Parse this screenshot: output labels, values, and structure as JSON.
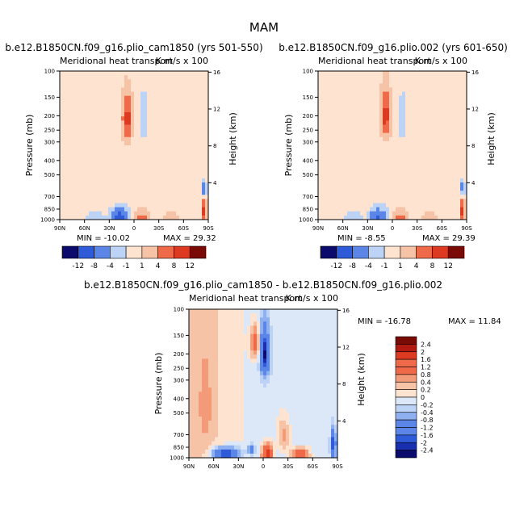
{
  "figure": {
    "title": "MAM"
  },
  "chart_data": [
    {
      "type": "heatmap",
      "title": "b.e12.B1850CN.f09_g16.plio_cam1850 (yrs 501-550)",
      "subtitle": "Meridional heat transport",
      "units": "K m/s x 100",
      "ylabel": "Pressure (mb)",
      "ylabel_right": "Height (km)",
      "x_ticks": [
        "90N",
        "60N",
        "30N",
        "0",
        "30S",
        "60S",
        "90S"
      ],
      "y_ticks": [
        "100",
        "150",
        "200",
        "250",
        "300",
        "400",
        "500",
        "700",
        "850",
        "1000"
      ],
      "y_ticks_values": [
        100,
        150,
        200,
        250,
        300,
        400,
        500,
        700,
        850,
        1000
      ],
      "height_ticks": [
        "16",
        "12",
        "8",
        "4"
      ],
      "height_ticks_values": [
        16,
        12,
        8,
        4
      ],
      "min_label": "MIN = -10.02",
      "max_label": "MAX = 29.32",
      "min": -10.02,
      "max": 29.32,
      "colorbar_labels": [
        "-12",
        "-8",
        "-4",
        "-1",
        "1",
        "4",
        "8",
        "12"
      ],
      "features": [
        {
          "lat": 8,
          "p": 210,
          "value": 10,
          "sx": 6,
          "sp": 70
        },
        {
          "lat": -12,
          "p": 210,
          "value": -3,
          "sx": 4,
          "sp": 60
        },
        {
          "lat": -35,
          "p": 250,
          "value": 1.2,
          "sx": 12,
          "sp": 260
        },
        {
          "lat": 58,
          "p": 200,
          "value": -0.6,
          "sx": 5,
          "sp": 40
        },
        {
          "lat": 18,
          "p": 960,
          "value": -10,
          "sx": 10,
          "sp": 130
        },
        {
          "lat": -10,
          "p": 980,
          "value": 6,
          "sx": 9,
          "sp": 120
        },
        {
          "lat": -45,
          "p": 980,
          "value": 4,
          "sx": 9,
          "sp": 110
        },
        {
          "lat": 48,
          "p": 960,
          "value": -4,
          "sx": 10,
          "sp": 110
        },
        {
          "lat": -85,
          "p": 880,
          "value": 12,
          "sx": 3,
          "sp": 140
        },
        {
          "lat": -85,
          "p": 620,
          "value": -8,
          "sx": 2.5,
          "sp": 60
        }
      ],
      "background": [
        {
          "lat": 60,
          "value": 0.6
        },
        {
          "lat": 30,
          "value": 0.4
        },
        {
          "lat": 5,
          "value": -0.3
        },
        {
          "lat": -25,
          "value": -0.5
        },
        {
          "lat": -60,
          "value": -0.4
        }
      ]
    },
    {
      "type": "heatmap",
      "title": "b.e12.B1850CN.f09_g16.plio.002 (yrs 601-650)",
      "subtitle": "Meridional heat transport",
      "units": "K m/s x 100",
      "ylabel": "Pressure (mb)",
      "ylabel_right": "Height (km)",
      "x_ticks": [
        "90N",
        "60N",
        "30N",
        "0",
        "30S",
        "60S",
        "90S"
      ],
      "y_ticks": [
        "100",
        "150",
        "200",
        "250",
        "300",
        "400",
        "500",
        "700",
        "850",
        "1000"
      ],
      "y_ticks_values": [
        100,
        150,
        200,
        250,
        300,
        400,
        500,
        700,
        850,
        1000
      ],
      "height_ticks": [
        "16",
        "12",
        "8",
        "4"
      ],
      "height_ticks_values": [
        16,
        12,
        8,
        4
      ],
      "min_label": "MIN = -8.55",
      "max_label": "MAX = 29.39",
      "min": -8.55,
      "max": 29.39,
      "colorbar_labels": [
        "-12",
        "-8",
        "-4",
        "-1",
        "1",
        "4",
        "8",
        "12"
      ],
      "features": [
        {
          "lat": 8,
          "p": 200,
          "value": 10,
          "sx": 6,
          "sp": 70
        },
        {
          "lat": -12,
          "p": 210,
          "value": -3,
          "sx": 4,
          "sp": 60
        },
        {
          "lat": -35,
          "p": 250,
          "value": 1.2,
          "sx": 12,
          "sp": 260
        },
        {
          "lat": 58,
          "p": 200,
          "value": -0.6,
          "sx": 5,
          "sp": 40
        },
        {
          "lat": 18,
          "p": 960,
          "value": -9,
          "sx": 10,
          "sp": 130
        },
        {
          "lat": -10,
          "p": 980,
          "value": 6,
          "sx": 9,
          "sp": 120
        },
        {
          "lat": -45,
          "p": 980,
          "value": 4,
          "sx": 9,
          "sp": 110
        },
        {
          "lat": 48,
          "p": 960,
          "value": -4,
          "sx": 10,
          "sp": 110
        },
        {
          "lat": -85,
          "p": 880,
          "value": 12,
          "sx": 3,
          "sp": 140
        },
        {
          "lat": -85,
          "p": 620,
          "value": -7,
          "sx": 2.5,
          "sp": 60
        }
      ],
      "background": [
        {
          "lat": 60,
          "value": 0.6
        },
        {
          "lat": 30,
          "value": 0.4
        },
        {
          "lat": 5,
          "value": -0.3
        },
        {
          "lat": -25,
          "value": -0.5
        },
        {
          "lat": -60,
          "value": -0.4
        }
      ]
    },
    {
      "type": "heatmap",
      "title": "b.e12.B1850CN.f09_g16.plio_cam1850 - b.e12.B1850CN.f09_g16.plio.002",
      "subtitle": "Meridional heat transport",
      "units": "K m/s x 100",
      "ylabel": "Pressure (mb)",
      "ylabel_right": "Height (km)",
      "x_ticks": [
        "90N",
        "60N",
        "30N",
        "0",
        "30S",
        "60S",
        "90S"
      ],
      "y_ticks": [
        "100",
        "150",
        "200",
        "250",
        "300",
        "400",
        "500",
        "700",
        "850",
        "1000"
      ],
      "y_ticks_values": [
        100,
        150,
        200,
        250,
        300,
        400,
        500,
        700,
        850,
        1000
      ],
      "height_ticks": [
        "16",
        "12",
        "8",
        "4"
      ],
      "height_ticks_values": [
        16,
        12,
        8,
        4
      ],
      "min_label": "MIN = -16.78",
      "max_label": "MAX = 11.84",
      "min": -16.78,
      "max": 11.84,
      "colorbar_labels": [
        "2.4",
        "2",
        "1.6",
        "1.2",
        "0.8",
        "0.4",
        "0.2",
        "0",
        "-0.2",
        "-0.4",
        "-0.8",
        "-1.2",
        "-1.6",
        "-2",
        "-2.4"
      ],
      "features": [
        {
          "lat": -2,
          "p": 200,
          "value": -2.4,
          "sx": 5,
          "sp": 70
        },
        {
          "lat": 10,
          "p": 170,
          "value": 1.2,
          "sx": 5,
          "sp": 40
        },
        {
          "lat": 45,
          "p": 940,
          "value": -2.2,
          "sx": 15,
          "sp": 90
        },
        {
          "lat": -5,
          "p": 950,
          "value": 2,
          "sx": 6,
          "sp": 140
        },
        {
          "lat": -45,
          "p": 960,
          "value": 1.6,
          "sx": 10,
          "sp": 100
        },
        {
          "lat": -85,
          "p": 820,
          "value": -2,
          "sx": 3,
          "sp": 170
        },
        {
          "lat": 15,
          "p": 880,
          "value": -1.2,
          "sx": 4,
          "sp": 60
        },
        {
          "lat": -25,
          "p": 700,
          "value": 0.6,
          "sx": 8,
          "sp": 200
        },
        {
          "lat": 70,
          "p": 450,
          "value": 0.3,
          "sx": 8,
          "sp": 300
        }
      ],
      "background": [
        {
          "lat": 70,
          "value": 0.25
        },
        {
          "lat": 40,
          "value": 0.15
        },
        {
          "lat": 10,
          "value": -0.1
        },
        {
          "lat": -30,
          "value": -0.15
        },
        {
          "lat": -70,
          "value": -0.1
        }
      ]
    }
  ],
  "colors": {
    "palette": [
      "#0b0b6e",
      "#1a2fb0",
      "#2f5bd8",
      "#5b86e8",
      "#8fb0f0",
      "#bcd3f6",
      "#dce8f8",
      "#fde3d0",
      "#f7c3a6",
      "#f39a78",
      "#ee6a48",
      "#dc3a21",
      "#b01a10",
      "#7a0a06"
    ]
  }
}
